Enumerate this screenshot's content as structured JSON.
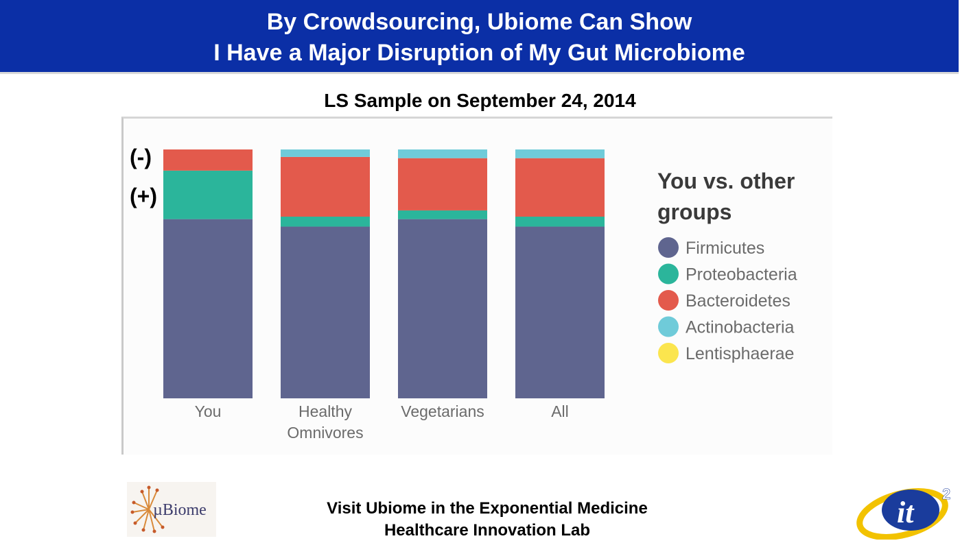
{
  "header": {
    "title_line1": "By Crowdsourcing, Ubiome Can Show",
    "title_line2": "I Have a Major Disruption of My Gut Microbiome"
  },
  "subtitle": "LS Sample on September 24, 2014",
  "annotations": {
    "minus": "(-)",
    "plus": "(+)"
  },
  "footer": {
    "line1": "Visit Ubiome in the Exponential Medicine",
    "line2": "Healthcare Innovation Lab"
  },
  "logos": {
    "ubiome_text": "µBiome",
    "it2_text": "it",
    "it2_superscript": "2"
  },
  "colors": {
    "header_bg": "#0b2fa6",
    "Firmicutes": "#5f658f",
    "Proteobacteria": "#2bb59b",
    "Bacteroidetes": "#e35a4c",
    "Actinobacteria": "#6fcbd9",
    "Lentisphaerae": "#fbe54e"
  },
  "chart_data": {
    "type": "bar",
    "stacked": true,
    "legend_title": "You vs. other groups",
    "legend_position": "right",
    "categories": [
      "You",
      "Healthy Omnivores",
      "Vegetarians",
      "All"
    ],
    "series": [
      {
        "name": "Firmicutes",
        "values": [
          72,
          69,
          72,
          69
        ]
      },
      {
        "name": "Proteobacteria",
        "values": [
          19.5,
          4,
          3.5,
          4
        ]
      },
      {
        "name": "Bacteroidetes",
        "values": [
          8.5,
          24,
          21,
          23.5
        ]
      },
      {
        "name": "Actinobacteria",
        "values": [
          0,
          3,
          3.5,
          3.5
        ]
      },
      {
        "name": "Lentisphaerae",
        "values": [
          0,
          0,
          0,
          0
        ]
      }
    ],
    "ylim": [
      0,
      100
    ],
    "grid": false
  }
}
